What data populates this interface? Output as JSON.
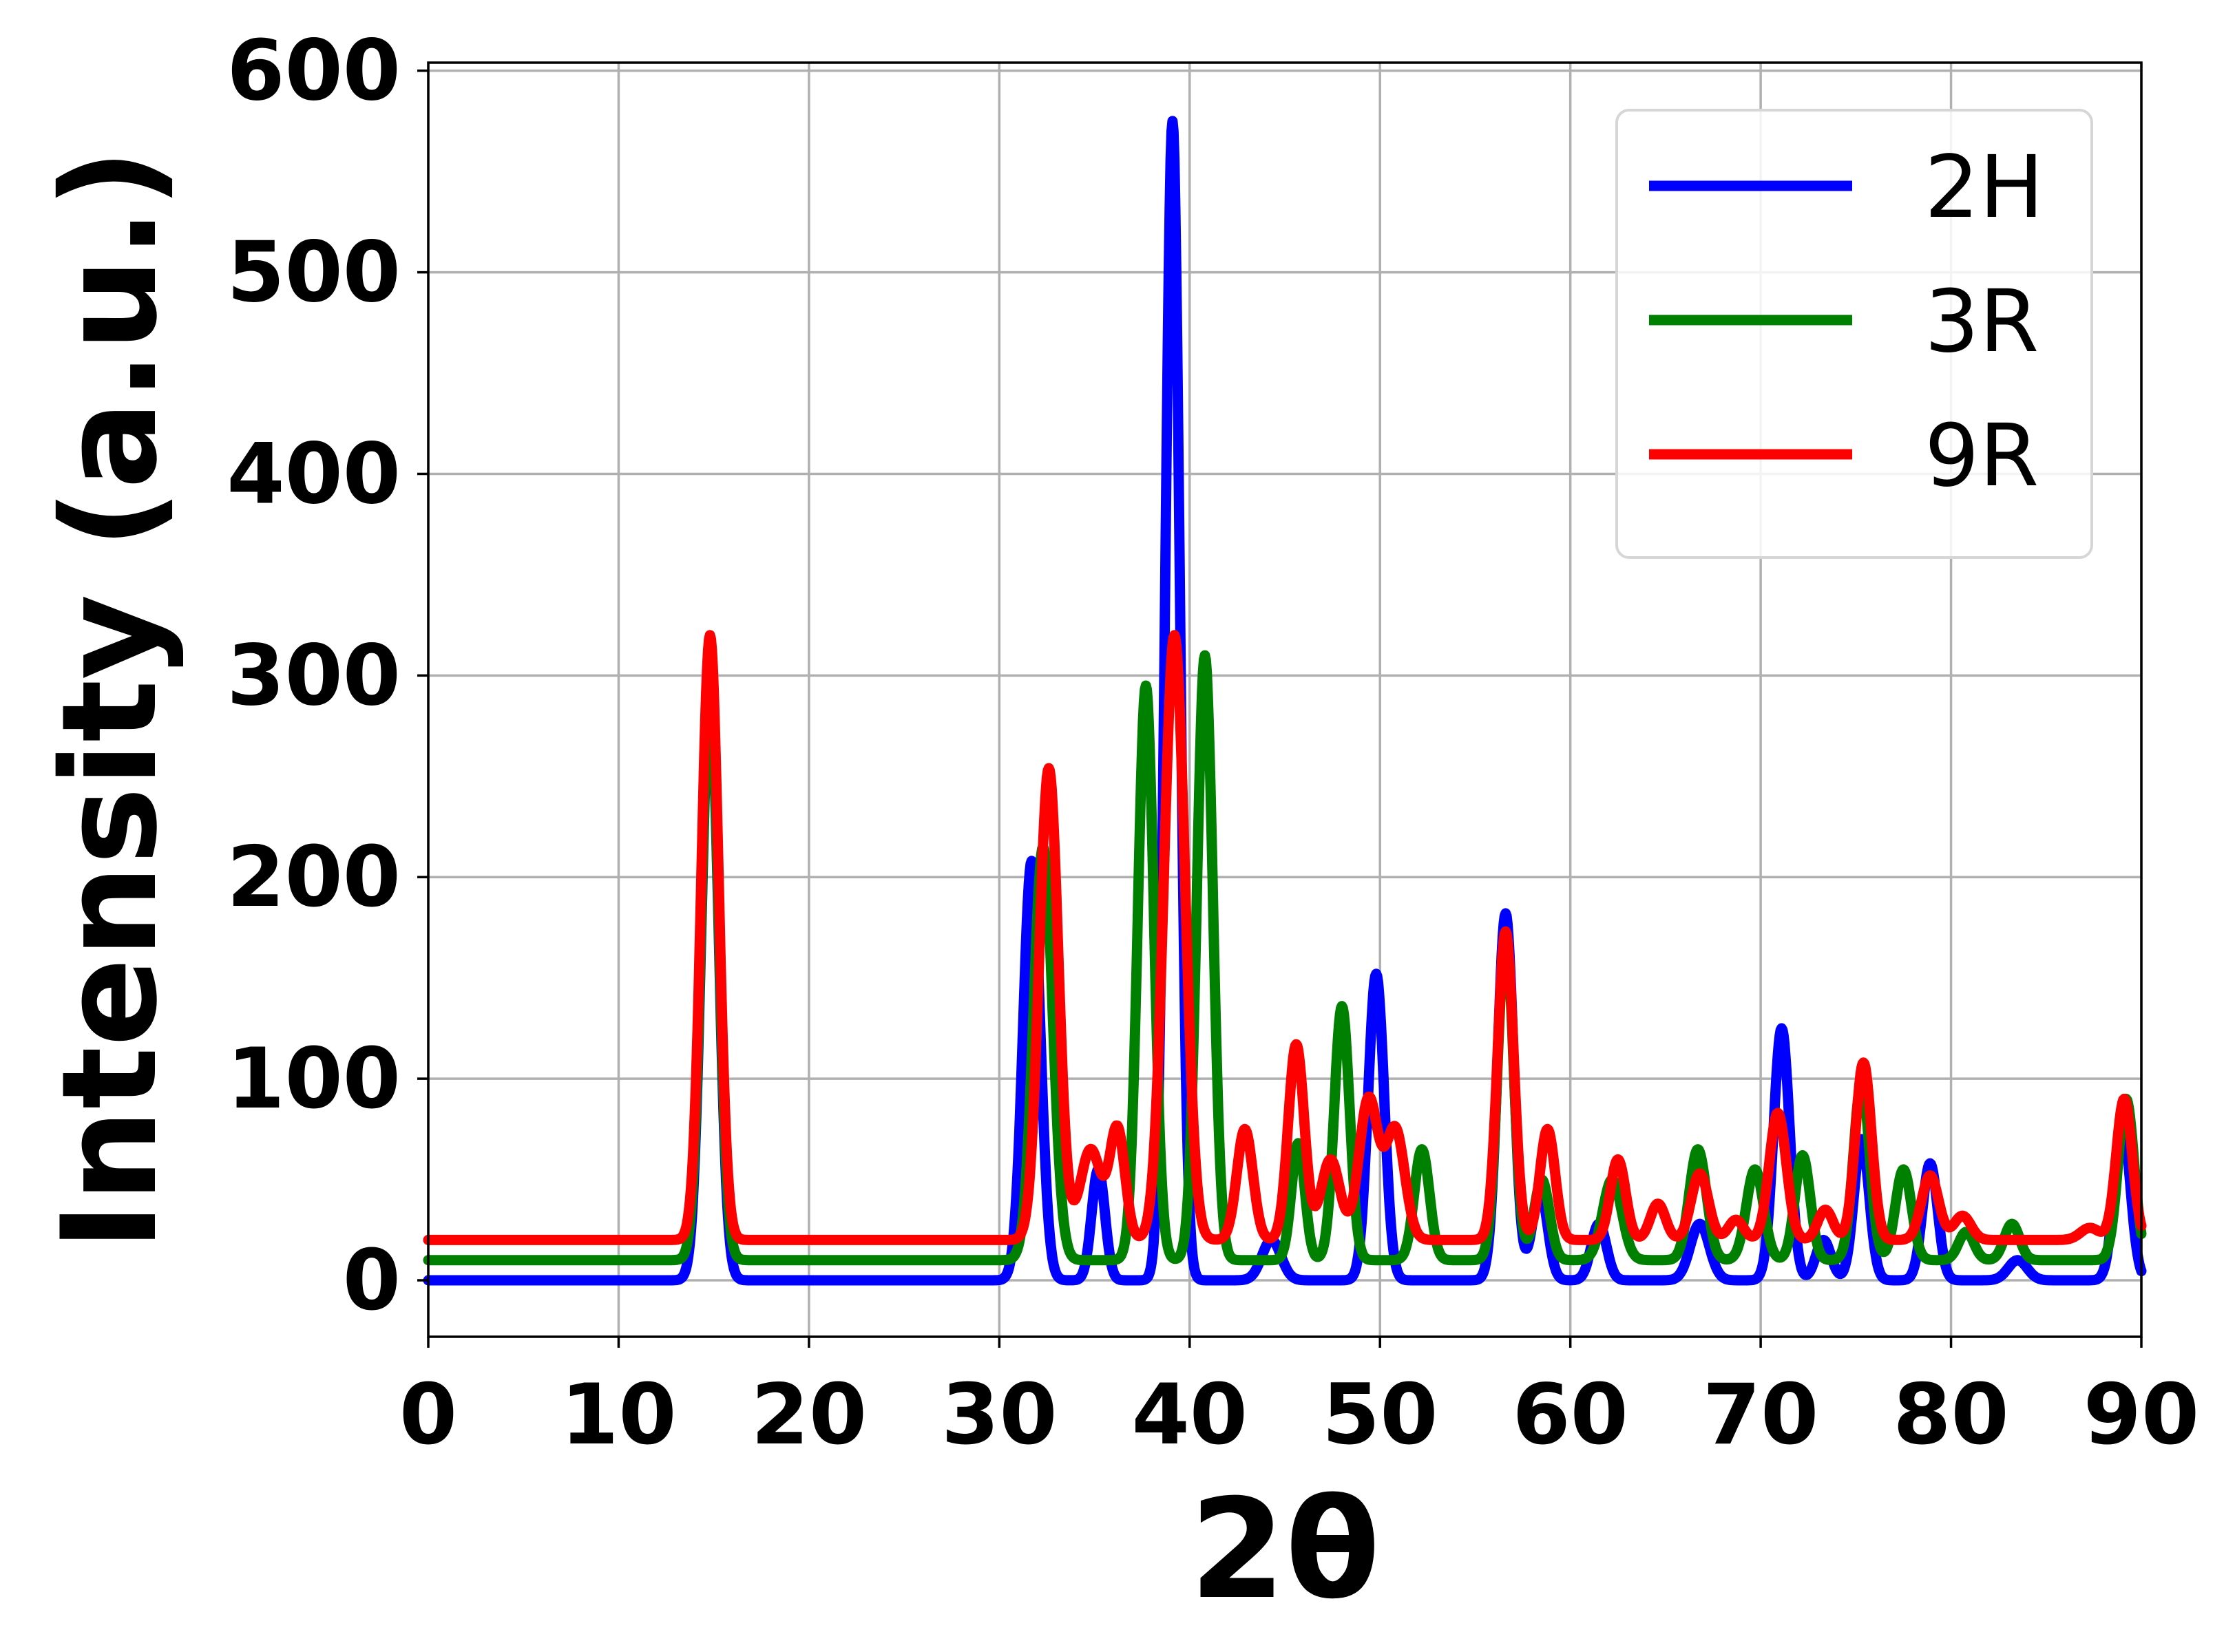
{
  "chart_data": {
    "type": "line",
    "title": "",
    "xlabel": "2θ",
    "ylabel": "Intensity (a.u.)",
    "xlim": [
      0,
      90
    ],
    "ylim": [
      -28,
      604
    ],
    "xticks": [
      0,
      10,
      20,
      30,
      40,
      50,
      60,
      70,
      80,
      90
    ],
    "yticks": [
      0,
      100,
      200,
      300,
      400,
      500,
      600
    ],
    "grid": true,
    "legend": {
      "position": "top-right",
      "entries": [
        "2H",
        "3R",
        "9R"
      ]
    },
    "series": [
      {
        "name": "2H",
        "color": "#0000ff",
        "baseline": 0,
        "peaks": [
          [
            14.8,
            290,
            0.45
          ],
          [
            31.7,
            208,
            0.45
          ],
          [
            35.2,
            55,
            0.35
          ],
          [
            39.1,
            575,
            0.38
          ],
          [
            44.3,
            20,
            0.5
          ],
          [
            49.8,
            152,
            0.42
          ],
          [
            56.6,
            182,
            0.42
          ],
          [
            58.4,
            45,
            0.4
          ],
          [
            61.5,
            28,
            0.4
          ],
          [
            66.8,
            28,
            0.5
          ],
          [
            71.1,
            125,
            0.42
          ],
          [
            73.3,
            20,
            0.4
          ],
          [
            75.3,
            70,
            0.4
          ],
          [
            78.9,
            58,
            0.4
          ],
          [
            83.5,
            10,
            0.5
          ],
          [
            89.0,
            78,
            0.42
          ]
        ]
      },
      {
        "name": "3R",
        "color": "#008000",
        "baseline": 10,
        "peaks": [
          [
            14.8,
            282,
            0.45
          ],
          [
            32.3,
            205,
            0.5
          ],
          [
            37.7,
            285,
            0.42
          ],
          [
            40.8,
            300,
            0.42
          ],
          [
            45.7,
            58,
            0.35
          ],
          [
            48.0,
            126,
            0.4
          ],
          [
            52.2,
            55,
            0.4
          ],
          [
            56.6,
            160,
            0.42
          ],
          [
            58.5,
            40,
            0.4
          ],
          [
            62.2,
            40,
            0.5
          ],
          [
            66.7,
            55,
            0.45
          ],
          [
            69.7,
            45,
            0.45
          ],
          [
            72.2,
            52,
            0.4
          ],
          [
            75.3,
            88,
            0.42
          ],
          [
            77.5,
            45,
            0.42
          ],
          [
            80.8,
            14,
            0.4
          ],
          [
            83.2,
            18,
            0.4
          ],
          [
            89.2,
            80,
            0.42
          ]
        ]
      },
      {
        "name": "9R",
        "color": "#ff0000",
        "baseline": 20,
        "peaks": [
          [
            14.8,
            300,
            0.45
          ],
          [
            32.6,
            234,
            0.5
          ],
          [
            34.8,
            45,
            0.55
          ],
          [
            36.2,
            55,
            0.4
          ],
          [
            39.2,
            300,
            0.55
          ],
          [
            42.9,
            55,
            0.42
          ],
          [
            45.6,
            97,
            0.42
          ],
          [
            47.4,
            40,
            0.5
          ],
          [
            49.4,
            70,
            0.5
          ],
          [
            50.8,
            55,
            0.5
          ],
          [
            56.6,
            153,
            0.42
          ],
          [
            58.8,
            55,
            0.4
          ],
          [
            62.5,
            40,
            0.4
          ],
          [
            64.6,
            18,
            0.4
          ],
          [
            66.8,
            33,
            0.45
          ],
          [
            68.7,
            10,
            0.4
          ],
          [
            70.9,
            63,
            0.45
          ],
          [
            73.4,
            15,
            0.4
          ],
          [
            75.4,
            88,
            0.42
          ],
          [
            78.9,
            32,
            0.45
          ],
          [
            80.6,
            12,
            0.45
          ],
          [
            87.3,
            6,
            0.5
          ],
          [
            89.1,
            70,
            0.42
          ]
        ]
      }
    ]
  }
}
